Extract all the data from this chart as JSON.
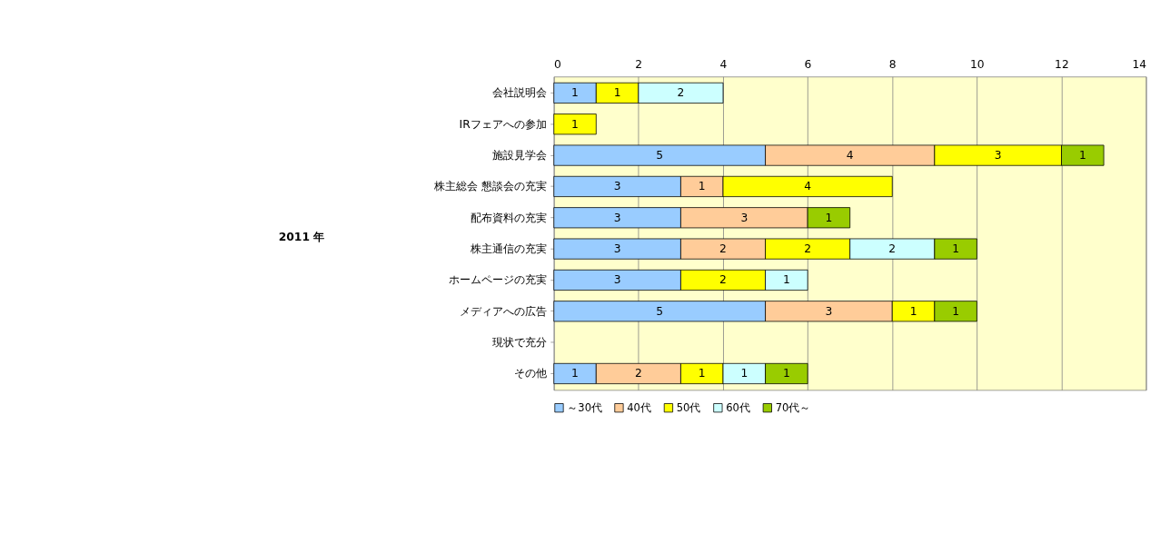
{
  "chart_data": {
    "type": "bar",
    "orientation": "horizontal",
    "stacked": true,
    "annotations": [
      "2011 年"
    ],
    "categories": [
      "会社説明会",
      "IRフェアへの参加",
      "施設見学会",
      "株主総会 懇談会の充実",
      "配布資料の充実",
      "株主通信の充実",
      "ホームページの充実",
      "メディアへの広告",
      "現状で充分",
      "その他"
    ],
    "series": [
      {
        "name": "～30代",
        "color": "#99ccff",
        "values": [
          1,
          null,
          5,
          3,
          3,
          3,
          3,
          5,
          null,
          1
        ]
      },
      {
        "name": "40代",
        "color": "#ffcc99",
        "values": [
          null,
          null,
          4,
          1,
          3,
          2,
          null,
          3,
          null,
          2
        ]
      },
      {
        "name": "50代",
        "color": "#ffff00",
        "values": [
          1,
          1,
          3,
          4,
          null,
          2,
          2,
          1,
          null,
          1
        ]
      },
      {
        "name": "60代",
        "color": "#ccffff",
        "values": [
          2,
          null,
          null,
          null,
          null,
          2,
          1,
          null,
          null,
          1
        ]
      },
      {
        "name": "70代～",
        "color": "#99cc00",
        "values": [
          null,
          null,
          1,
          null,
          1,
          1,
          null,
          1,
          null,
          1
        ]
      }
    ],
    "xlim": [
      0,
      14
    ],
    "xticks": [
      0,
      2,
      4,
      6,
      8,
      10,
      12,
      14
    ],
    "grid": "x",
    "legend": "bottom",
    "data_labels": true
  }
}
